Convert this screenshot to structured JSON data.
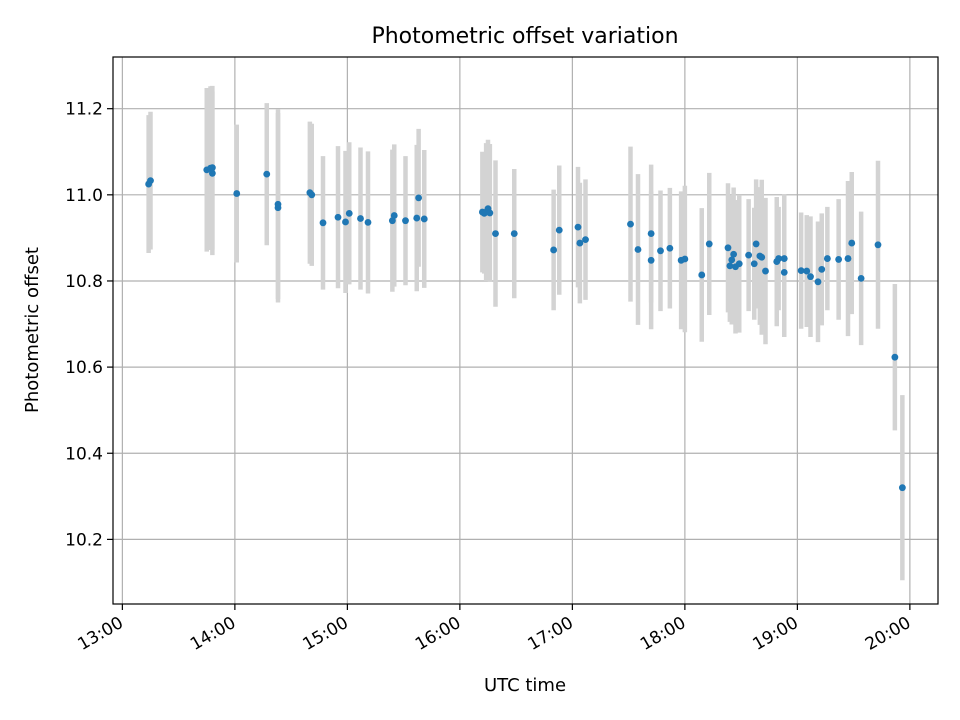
{
  "chart_data": {
    "type": "scatter",
    "title": "Photometric offset variation",
    "xlabel": "UTC time",
    "ylabel": "Photometric offset",
    "xlim": [
      "12:55",
      "20:15"
    ],
    "ylim": [
      10.05,
      11.32
    ],
    "xticks": [
      "13:00",
      "14:00",
      "15:00",
      "16:00",
      "17:00",
      "18:00",
      "19:00",
      "20:00"
    ],
    "yticks": [
      "10.2",
      "10.4",
      "10.6",
      "10.8",
      "11.0",
      "11.2"
    ],
    "grid": true,
    "colors": {
      "marker": "#1f77b4",
      "errorbar": "#d3d3d3",
      "grid": "#b0b0b0",
      "axes": "#000000"
    },
    "series": [
      {
        "x": [
          "13:14",
          "13:15",
          "13:45",
          "13:47",
          "13:48",
          "13:48",
          "14:01",
          "14:17",
          "14:23",
          "14:23",
          "14:40",
          "14:41",
          "14:47",
          "14:55",
          "14:59",
          "15:01",
          "15:07",
          "15:11",
          "15:24",
          "15:25",
          "15:31",
          "15:37",
          "15:38",
          "15:41",
          "16:12",
          "16:13",
          "16:14",
          "16:15",
          "16:16",
          "16:19",
          "16:29",
          "16:50",
          "16:53",
          "17:03",
          "17:04",
          "17:07",
          "17:31",
          "17:35",
          "17:42",
          "17:42",
          "17:47",
          "17:52",
          "17:58",
          "18:00",
          "18:09",
          "18:13",
          "18:23",
          "18:24",
          "18:25",
          "18:26",
          "18:27",
          "18:29",
          "18:34",
          "18:37",
          "18:38",
          "18:40",
          "18:41",
          "18:43",
          "18:49",
          "18:50",
          "18:53",
          "18:53",
          "19:02",
          "19:05",
          "19:07",
          "19:11",
          "19:13",
          "19:16",
          "19:22",
          "19:27",
          "19:29",
          "19:34",
          "19:43",
          "19:52",
          "19:56"
        ],
        "y": [
          11.025,
          11.033,
          11.058,
          11.062,
          11.05,
          11.063,
          11.003,
          11.048,
          10.97,
          10.978,
          11.005,
          11.0,
          10.935,
          10.948,
          10.937,
          10.957,
          10.945,
          10.936,
          10.94,
          10.952,
          10.94,
          10.946,
          10.993,
          10.944,
          10.96,
          10.957,
          10.96,
          10.968,
          10.958,
          10.91,
          10.91,
          10.872,
          10.918,
          10.925,
          10.888,
          10.896,
          10.932,
          10.873,
          10.848,
          10.91,
          10.87,
          10.876,
          10.848,
          10.851,
          10.814,
          10.886,
          10.877,
          10.835,
          10.849,
          10.862,
          10.833,
          10.84,
          10.86,
          10.84,
          10.886,
          10.858,
          10.855,
          10.823,
          10.845,
          10.852,
          10.82,
          10.852,
          10.824,
          10.823,
          10.81,
          10.798,
          10.827,
          10.852,
          10.85,
          10.852,
          10.888,
          10.806,
          10.884,
          10.623,
          10.32
        ],
        "err": [
          0.16,
          0.16,
          0.19,
          0.19,
          0.19,
          0.19,
          0.16,
          0.165,
          0.22,
          0.22,
          0.165,
          0.165,
          0.155,
          0.165,
          0.165,
          0.165,
          0.165,
          0.165,
          0.165,
          0.165,
          0.15,
          0.17,
          0.16,
          0.16,
          0.14,
          0.14,
          0.16,
          0.16,
          0.16,
          0.17,
          0.15,
          0.14,
          0.15,
          0.14,
          0.14,
          0.14,
          0.18,
          0.175,
          0.16,
          0.16,
          0.14,
          0.14,
          0.16,
          0.17,
          0.155,
          0.165,
          0.15,
          0.13,
          0.15,
          0.155,
          0.155,
          0.16,
          0.13,
          0.13,
          0.15,
          0.16,
          0.18,
          0.17,
          0.15,
          0.12,
          0.15,
          0.15,
          0.135,
          0.13,
          0.14,
          0.14,
          0.13,
          0.12,
          0.14,
          0.18,
          0.165,
          0.155,
          0.195,
          0.17,
          0.215
        ]
      }
    ]
  }
}
